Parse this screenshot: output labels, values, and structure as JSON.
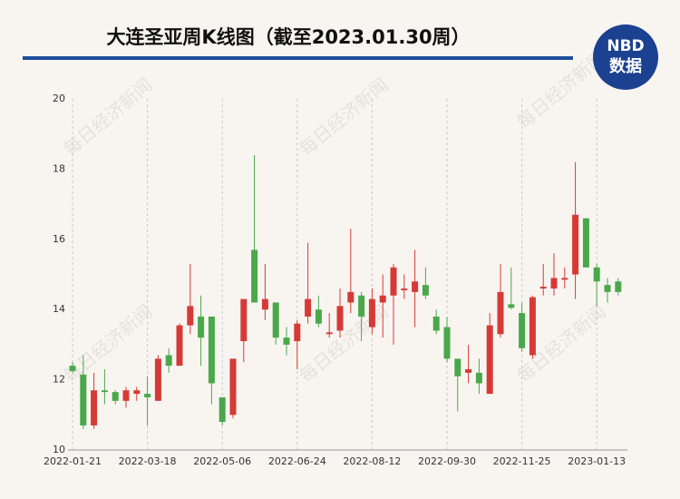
{
  "header": {
    "logo_top": "NBD",
    "logo_bottom": "数据"
  },
  "watermark": "每日经济新闻",
  "chart_data": {
    "type": "candlestick",
    "title": "大连圣亚周K线图（截至2023.01.30周）",
    "categories": [
      "2022-01-21",
      null,
      null,
      null,
      null,
      null,
      null,
      "2022-03-18",
      null,
      null,
      null,
      null,
      null,
      null,
      "2022-05-06",
      null,
      null,
      null,
      null,
      null,
      null,
      "2022-06-24",
      null,
      null,
      null,
      null,
      null,
      null,
      "2022-08-12",
      null,
      null,
      null,
      null,
      null,
      null,
      "2022-09-30",
      null,
      null,
      null,
      null,
      null,
      null,
      "2022-11-25",
      null,
      null,
      null,
      null,
      null,
      null,
      "2023-01-13",
      null,
      null
    ],
    "open": [
      12.4,
      12.15,
      10.7,
      11.7,
      11.65,
      11.4,
      11.6,
      11.6,
      11.4,
      12.7,
      12.4,
      13.55,
      13.8,
      13.8,
      11.5,
      11.0,
      13.1,
      15.7,
      14.0,
      14.2,
      13.2,
      13.1,
      13.8,
      14.0,
      13.3,
      13.4,
      14.2,
      14.4,
      13.5,
      14.2,
      14.4,
      14.55,
      14.5,
      14.7,
      13.8,
      13.5,
      12.6,
      12.2,
      12.2,
      11.6,
      13.3,
      14.15,
      13.9,
      12.7,
      14.6,
      14.6,
      14.85,
      15.0,
      16.6,
      15.2,
      14.7,
      14.8
    ],
    "high": [
      12.5,
      12.7,
      12.2,
      12.3,
      11.7,
      11.8,
      11.8,
      12.1,
      12.7,
      12.9,
      13.6,
      15.3,
      14.4,
      13.8,
      11.5,
      12.6,
      14.3,
      18.4,
      15.3,
      14.2,
      13.5,
      13.7,
      15.9,
      14.4,
      13.9,
      14.6,
      16.3,
      14.5,
      14.6,
      15.0,
      15.3,
      15.0,
      15.7,
      15.2,
      14.0,
      13.8,
      12.6,
      13.0,
      12.6,
      13.9,
      15.3,
      15.2,
      14.2,
      14.4,
      15.3,
      15.6,
      15.2,
      18.2,
      16.6,
      15.3,
      14.9,
      14.9
    ],
    "low": [
      12.2,
      10.6,
      10.6,
      11.3,
      11.3,
      11.2,
      11.4,
      10.7,
      11.4,
      12.2,
      12.4,
      13.3,
      12.4,
      11.3,
      10.7,
      10.9,
      12.5,
      14.2,
      13.7,
      13.0,
      12.7,
      12.3,
      13.6,
      13.5,
      13.2,
      13.2,
      13.9,
      13.1,
      13.3,
      13.2,
      13.0,
      14.3,
      13.5,
      14.3,
      13.3,
      12.5,
      11.1,
      11.9,
      11.6,
      11.6,
      13.2,
      14.0,
      12.8,
      12.6,
      14.4,
      14.4,
      14.6,
      14.3,
      15.2,
      14.1,
      14.2,
      14.4
    ],
    "close": [
      12.25,
      10.7,
      11.7,
      11.65,
      11.4,
      11.7,
      11.7,
      11.5,
      12.6,
      12.4,
      13.55,
      14.1,
      13.2,
      11.9,
      10.8,
      12.6,
      14.3,
      14.2,
      14.3,
      13.2,
      13.0,
      13.6,
      14.3,
      13.6,
      13.35,
      14.1,
      14.5,
      13.8,
      14.3,
      14.4,
      15.2,
      14.6,
      14.8,
      14.4,
      13.4,
      12.6,
      12.1,
      12.3,
      11.9,
      13.55,
      14.5,
      14.05,
      12.9,
      14.35,
      14.65,
      14.9,
      14.9,
      16.7,
      15.2,
      14.8,
      14.5,
      14.5
    ],
    "up_color": "#d63a36",
    "down_color": "#4aa84a",
    "ylim": [
      10,
      20
    ],
    "yticks": [
      10,
      12,
      14,
      16,
      18,
      20
    ],
    "grid": true
  }
}
